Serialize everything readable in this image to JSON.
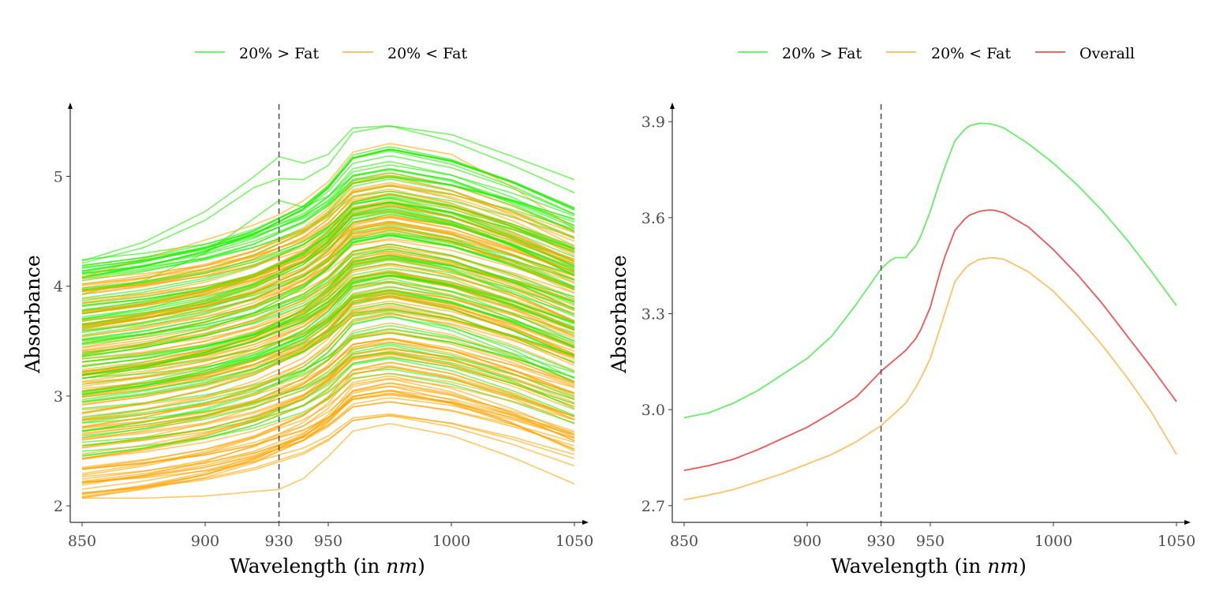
{
  "chart_data": [
    {
      "type": "line",
      "title": "",
      "xlabel": "Wavelength (in nm)",
      "ylabel": "Absorbance",
      "xlim": [
        850,
        1050
      ],
      "ylim": [
        1.9,
        5.6
      ],
      "x_ticks": [
        850,
        900,
        930,
        950,
        1000,
        1050
      ],
      "y_ticks": [
        2,
        3,
        4,
        5
      ],
      "vline": 930,
      "legend_position": "top",
      "legend": [
        {
          "name": "20% > Fat",
          "color": "#33ff33"
        },
        {
          "name": "20% < Fat",
          "color": "#ffa500"
        }
      ],
      "grid": false,
      "series_groups": [
        {
          "name": "20% > Fat",
          "color": "#22ee00",
          "count": 92,
          "base_range": [
            2.45,
            4.25
          ],
          "highlighted_curves": [
            {
              "x": [
                850,
                875,
                900,
                920,
                930,
                940,
                950,
                960,
                975,
                1000,
                1025,
                1050
              ],
              "y": [
                4.23,
                4.4,
                4.68,
                5.0,
                5.18,
                5.12,
                5.2,
                5.44,
                5.46,
                5.38,
                5.18,
                4.97
              ]
            },
            {
              "x": [
                850,
                875,
                900,
                920,
                930,
                940,
                950,
                960,
                975,
                1000,
                1025,
                1050
              ],
              "y": [
                4.21,
                4.35,
                4.6,
                4.9,
                4.98,
                4.97,
                5.1,
                5.4,
                5.46,
                5.32,
                5.1,
                4.85
              ]
            },
            {
              "x": [
                850,
                875,
                900,
                920,
                930,
                940,
                950,
                960,
                975,
                1000,
                1025,
                1050
              ],
              "y": [
                3.93,
                4.05,
                4.3,
                4.62,
                4.78,
                4.72,
                4.82,
                5.0,
                5.06,
                4.97,
                4.75,
                4.5
              ]
            }
          ]
        },
        {
          "name": "20% < Fat",
          "color": "#ffa500",
          "count": 123,
          "base_range": [
            2.07,
            4.08
          ],
          "highlighted_curves": [
            {
              "x": [
                850,
                875,
                900,
                920,
                930,
                940,
                950,
                960,
                975,
                1000,
                1025,
                1050
              ],
              "y": [
                4.08,
                4.25,
                4.42,
                4.56,
                4.65,
                4.78,
                4.95,
                5.22,
                5.3,
                5.2,
                4.9,
                4.52
              ]
            },
            {
              "x": [
                850,
                875,
                900,
                920,
                930,
                940,
                950,
                960,
                975,
                1000,
                1025,
                1050
              ],
              "y": [
                2.07,
                2.07,
                2.09,
                2.13,
                2.15,
                2.25,
                2.45,
                2.68,
                2.75,
                2.64,
                2.44,
                2.2
              ]
            }
          ]
        }
      ]
    },
    {
      "type": "line",
      "title": "",
      "xlabel": "Wavelength (in nm)",
      "ylabel": "Absorbance",
      "xlim": [
        850,
        1050
      ],
      "ylim": [
        2.665,
        3.935
      ],
      "x_ticks": [
        850,
        900,
        930,
        950,
        1000,
        1050
      ],
      "y_ticks": [
        2.7,
        3.0,
        3.3,
        3.6,
        3.9
      ],
      "y_tick_labels": [
        "2.7",
        "3.0",
        "3.3",
        "3.6",
        "3.9"
      ],
      "vline": 930,
      "legend_position": "top",
      "grid": false,
      "series": [
        {
          "name": "20% > Fat",
          "color": "#66ee66",
          "x": [
            850,
            860,
            870,
            880,
            890,
            900,
            910,
            920,
            930,
            935,
            940,
            945,
            950,
            955,
            960,
            965,
            970,
            975,
            980,
            990,
            1000,
            1010,
            1020,
            1030,
            1040,
            1050
          ],
          "y": [
            2.975,
            2.99,
            3.02,
            3.06,
            3.11,
            3.16,
            3.23,
            3.33,
            3.44,
            3.475,
            3.475,
            3.52,
            3.62,
            3.74,
            3.84,
            3.885,
            3.895,
            3.893,
            3.88,
            3.83,
            3.77,
            3.7,
            3.62,
            3.53,
            3.43,
            3.325
          ]
        },
        {
          "name": "20% < Fat",
          "color": "#ffc266",
          "x": [
            850,
            860,
            870,
            880,
            890,
            900,
            910,
            920,
            930,
            940,
            945,
            950,
            955,
            960,
            965,
            970,
            975,
            980,
            990,
            1000,
            1010,
            1020,
            1030,
            1040,
            1050
          ],
          "y": [
            2.718,
            2.733,
            2.75,
            2.775,
            2.8,
            2.83,
            2.86,
            2.9,
            2.95,
            3.02,
            3.08,
            3.16,
            3.28,
            3.4,
            3.45,
            3.47,
            3.475,
            3.47,
            3.43,
            3.37,
            3.29,
            3.2,
            3.1,
            2.99,
            2.86
          ]
        },
        {
          "name": "Overall",
          "color": "#ee5555",
          "x": [
            850,
            860,
            870,
            880,
            890,
            900,
            910,
            920,
            930,
            940,
            945,
            950,
            955,
            960,
            965,
            970,
            975,
            980,
            990,
            1000,
            1010,
            1020,
            1030,
            1040,
            1050
          ],
          "y": [
            2.81,
            2.825,
            2.845,
            2.875,
            2.91,
            2.945,
            2.99,
            3.04,
            3.12,
            3.185,
            3.23,
            3.32,
            3.46,
            3.56,
            3.605,
            3.62,
            3.625,
            3.615,
            3.57,
            3.5,
            3.42,
            3.33,
            3.23,
            3.13,
            3.025
          ]
        }
      ]
    }
  ]
}
